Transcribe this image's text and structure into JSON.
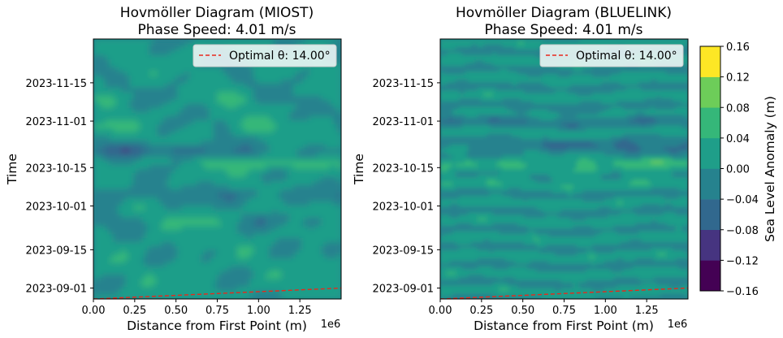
{
  "colors": {
    "colormap": [
      "#440154",
      "#463480",
      "#31688e",
      "#26828e",
      "#1f9e89",
      "#35b779",
      "#6dcd59",
      "#b4de2c",
      "#fde725"
    ],
    "optimal_line": "#e8291c",
    "frame": "#000000"
  },
  "colorbar": {
    "label": "Sea Level Anomaly (m)",
    "ticks": [
      "0.16",
      "0.12",
      "0.08",
      "0.04",
      "0.00",
      "−0.04",
      "−0.08",
      "−0.12",
      "−0.16"
    ],
    "levels": [
      -0.16,
      -0.12,
      -0.08,
      -0.04,
      0.0,
      0.04,
      0.08,
      0.12,
      0.16
    ]
  },
  "chart_data": [
    {
      "type": "heatmap",
      "title": "Hovmöller Diagram (MIOST)",
      "subtitle": "Phase Speed: 4.01 m/s",
      "xlabel": "Distance from First Point (m)",
      "ylabel": "Time",
      "x_offset_label": "1e6",
      "x_ticks": [
        "0.00",
        "0.25",
        "0.50",
        "0.75",
        "1.00",
        "1.25"
      ],
      "x_tick_values": [
        0.0,
        0.25,
        0.5,
        0.75,
        1.0,
        1.25
      ],
      "xlim": [
        0.0,
        1.5
      ],
      "y_ticks": [
        "2023-09-01",
        "2023-09-15",
        "2023-10-01",
        "2023-10-15",
        "2023-11-01",
        "2023-11-15"
      ],
      "y_tick_values": [
        "2023-09-01",
        "2023-09-15",
        "2023-10-01",
        "2023-10-15",
        "2023-11-01",
        "2023-11-15"
      ],
      "ylim": [
        "2023-08-28",
        "2023-12-01"
      ],
      "legend": {
        "label": "Optimal θ: 14.00°",
        "placement": "top-right"
      },
      "optimal_line": {
        "x": [
          0.0,
          1.5
        ],
        "y": [
          "2023-08-28",
          "2023-09-01"
        ],
        "style": "dashed"
      },
      "value_range": [
        -0.16,
        0.16
      ]
    },
    {
      "type": "heatmap",
      "title": "Hovmöller Diagram (BLUELINK)",
      "subtitle": "Phase Speed: 4.01 m/s",
      "xlabel": "Distance from First Point (m)",
      "ylabel": "Time",
      "x_offset_label": "1e6",
      "x_ticks": [
        "0.00",
        "0.25",
        "0.50",
        "0.75",
        "1.00",
        "1.25"
      ],
      "x_tick_values": [
        0.0,
        0.25,
        0.5,
        0.75,
        1.0,
        1.25
      ],
      "xlim": [
        0.0,
        1.5
      ],
      "y_ticks": [
        "2023-09-01",
        "2023-09-15",
        "2023-10-01",
        "2023-10-15",
        "2023-11-01",
        "2023-11-15"
      ],
      "y_tick_values": [
        "2023-09-01",
        "2023-09-15",
        "2023-10-01",
        "2023-10-15",
        "2023-11-01",
        "2023-11-15"
      ],
      "ylim": [
        "2023-08-28",
        "2023-12-01"
      ],
      "legend": {
        "label": "Optimal θ: 14.00°",
        "placement": "top-right"
      },
      "optimal_line": {
        "x": [
          0.0,
          1.5
        ],
        "y": [
          "2023-08-28",
          "2023-09-01"
        ],
        "style": "dashed"
      },
      "value_range": [
        -0.16,
        0.16
      ]
    }
  ]
}
